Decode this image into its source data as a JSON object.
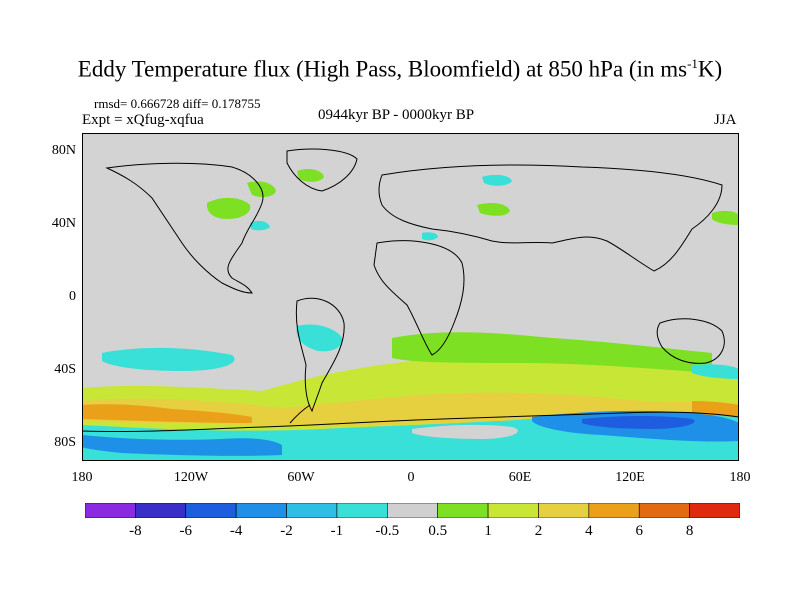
{
  "title": {
    "main": "Eddy Temperature flux (High Pass, Bloomfield) at 850 hPa (in ms",
    "sup": "-1",
    "unit_tail": "K)"
  },
  "stats": "rmsd= 0.666728 diff= 0.178755",
  "expt": "Expt = xQfug-xqfua",
  "period": "0944kyr BP - 0000kyr BP",
  "season": "JJA",
  "axes": {
    "y_labels": [
      "80N",
      "40N",
      "0",
      "40S",
      "80S"
    ],
    "x_labels": [
      "180",
      "120W",
      "60W",
      "0",
      "60E",
      "120E",
      "180"
    ]
  },
  "colorbar": {
    "labels": [
      "-8",
      "-6",
      "-4",
      "-2",
      "-1",
      "-0.5",
      "0.5",
      "1",
      "2",
      "4",
      "6",
      "8"
    ],
    "colors": [
      "#8a2be2",
      "#3a2ec8",
      "#1e5ce0",
      "#1e90e8",
      "#2ec0e4",
      "#38e0d8",
      "#d0d0d0",
      "#7ee022",
      "#c8e636",
      "#e6d040",
      "#eaa018",
      "#e46a10",
      "#e02a10"
    ]
  },
  "map": {
    "background": "#d3d3d3",
    "coastline_color": "#000000"
  }
}
